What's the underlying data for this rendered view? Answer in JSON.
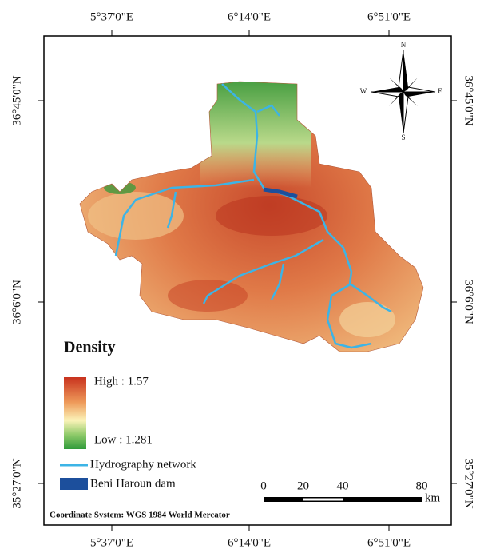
{
  "longitude_labels": [
    "5°37'0\"E",
    "6°14'0\"E",
    "6°51'0\"E"
  ],
  "latitude_labels": [
    "36°45'0\"N",
    "36°6'0\"N",
    "35°27'0\"N"
  ],
  "compass": {
    "n": "N",
    "e": "E",
    "s": "S",
    "w": "W"
  },
  "legend": {
    "title": "Density",
    "high": "High : 1.57",
    "low": "Low : 1.281",
    "items": [
      "Hydrography network",
      "Beni Haroun dam"
    ]
  },
  "scale_bar": {
    "ticks": [
      0,
      20,
      40,
      80
    ],
    "unit": "km"
  },
  "footer": "Coordinate System: WGS 1984 World Mercator"
}
